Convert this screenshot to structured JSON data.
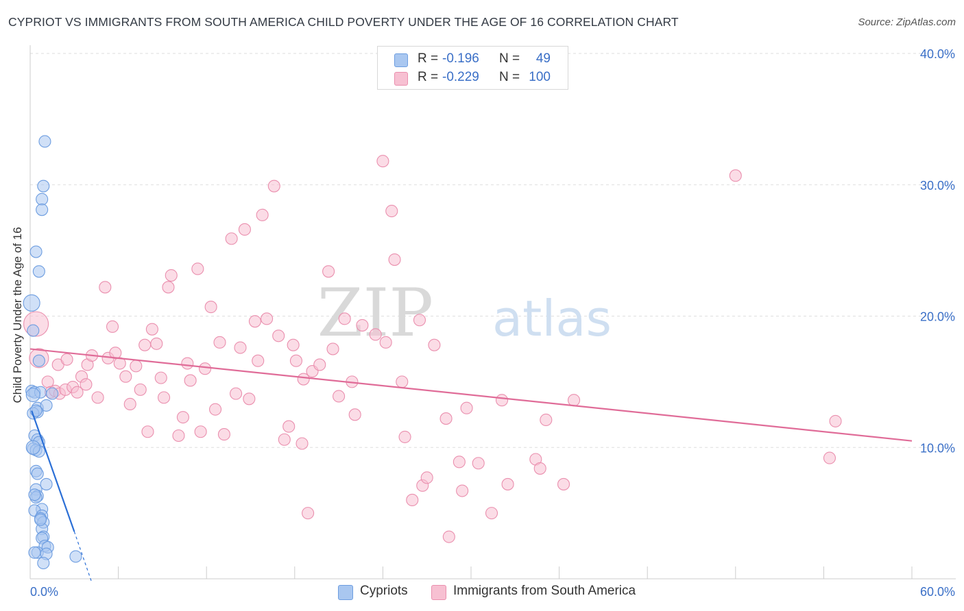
{
  "header": {
    "title": "CYPRIOT VS IMMIGRANTS FROM SOUTH AMERICA CHILD POVERTY UNDER THE AGE OF 16 CORRELATION CHART",
    "source": "Source: ZipAtlas.com"
  },
  "watermark": {
    "part1": "ZIP",
    "part2": "atlas"
  },
  "legend": {
    "rows": [
      {
        "r_label": "R =",
        "r_value": "-0.196",
        "n_label": "N =",
        "n_value": "49",
        "color": "#a9c7f0",
        "border": "#6d9de0"
      },
      {
        "r_label": "R =",
        "r_value": "-0.229",
        "n_label": "N =",
        "n_value": "100",
        "color": "#f7c0d2",
        "border": "#ea8fae"
      }
    ]
  },
  "bottom_legend": [
    {
      "label": "Cypriots",
      "color": "#a9c7f0",
      "border": "#6d9de0"
    },
    {
      "label": "Immigrants from South America",
      "color": "#f7c0d2",
      "border": "#ea8fae"
    }
  ],
  "chart_data": {
    "type": "scatter",
    "title": "CYPRIOT VS IMMIGRANTS FROM SOUTH AMERICA CHILD POVERTY UNDER THE AGE OF 16 CORRELATION CHART",
    "xlabel": "",
    "ylabel": "Child Poverty Under the Age of 16",
    "xlim": [
      0,
      60
    ],
    "ylim": [
      0,
      40
    ],
    "x_tick_labels": [
      "0.0%",
      "60.0%"
    ],
    "y_ticks": [
      10,
      20,
      30,
      40
    ],
    "y_tick_labels": [
      "10.0%",
      "20.0%",
      "30.0%",
      "40.0%"
    ],
    "grid": true,
    "series": [
      {
        "name": "Cypriots",
        "color": "#a9c7f0",
        "stroke": "#6d9de0",
        "line_color": "#2b6fd6",
        "trend": {
          "x0": 0.1,
          "y0": 12.8,
          "x1": 3.0,
          "y1": 3.6,
          "dash_to_x": 4.2,
          "dash_to_y": -0.3
        },
        "points": [
          [
            1.0,
            33.3
          ],
          [
            0.9,
            29.9
          ],
          [
            0.8,
            28.9
          ],
          [
            0.8,
            28.1
          ],
          [
            0.4,
            24.9
          ],
          [
            0.6,
            23.4
          ],
          [
            0.1,
            21.0
          ],
          [
            0.2,
            18.9
          ],
          [
            0.6,
            16.6
          ],
          [
            0.1,
            14.3
          ],
          [
            0.3,
            14.2
          ],
          [
            0.7,
            14.2
          ],
          [
            1.5,
            14.1
          ],
          [
            0.5,
            13.0
          ],
          [
            1.1,
            13.2
          ],
          [
            0.5,
            12.7
          ],
          [
            0.2,
            12.6
          ],
          [
            0.3,
            10.9
          ],
          [
            0.5,
            10.6
          ],
          [
            0.6,
            10.4
          ],
          [
            0.2,
            9.9
          ],
          [
            0.4,
            9.8
          ],
          [
            0.6,
            9.7
          ],
          [
            0.4,
            8.2
          ],
          [
            0.5,
            8.0
          ],
          [
            1.1,
            7.2
          ],
          [
            0.4,
            6.8
          ],
          [
            0.5,
            6.3
          ],
          [
            0.4,
            6.2
          ],
          [
            0.8,
            5.3
          ],
          [
            0.3,
            5.2
          ],
          [
            0.8,
            4.8
          ],
          [
            0.7,
            4.6
          ],
          [
            0.9,
            4.3
          ],
          [
            0.8,
            3.8
          ],
          [
            0.9,
            3.2
          ],
          [
            0.8,
            3.1
          ],
          [
            1.0,
            2.5
          ],
          [
            1.2,
            2.4
          ],
          [
            0.5,
            2.0
          ],
          [
            1.1,
            1.9
          ],
          [
            0.9,
            1.2
          ],
          [
            3.1,
            1.7
          ],
          [
            0.2,
            14.0
          ],
          [
            0.4,
            12.8
          ],
          [
            0.2,
            10.0
          ],
          [
            0.3,
            6.4
          ],
          [
            0.7,
            4.5
          ],
          [
            0.3,
            2.0
          ]
        ]
      },
      {
        "name": "Immigrants from South America",
        "color": "#f7c0d2",
        "stroke": "#ea8fae",
        "line_color": "#e06c98",
        "trend": {
          "x0": 0.0,
          "y0": 17.5,
          "x1": 60.0,
          "y1": 10.5
        },
        "points": [
          [
            0.4,
            19.4
          ],
          [
            0.6,
            16.8
          ],
          [
            1.2,
            15.0
          ],
          [
            1.4,
            14.2
          ],
          [
            1.7,
            14.3
          ],
          [
            1.9,
            16.3
          ],
          [
            2.0,
            14.1
          ],
          [
            2.4,
            14.4
          ],
          [
            2.5,
            16.7
          ],
          [
            2.9,
            14.6
          ],
          [
            3.2,
            14.2
          ],
          [
            3.5,
            15.4
          ],
          [
            3.8,
            14.8
          ],
          [
            3.9,
            16.3
          ],
          [
            4.2,
            17.0
          ],
          [
            4.6,
            13.8
          ],
          [
            5.1,
            22.2
          ],
          [
            5.3,
            16.8
          ],
          [
            5.6,
            19.2
          ],
          [
            5.8,
            17.2
          ],
          [
            6.1,
            16.4
          ],
          [
            6.5,
            15.4
          ],
          [
            6.8,
            13.3
          ],
          [
            7.2,
            16.2
          ],
          [
            7.5,
            14.4
          ],
          [
            7.8,
            17.8
          ],
          [
            8.0,
            11.2
          ],
          [
            8.3,
            19.0
          ],
          [
            8.6,
            17.9
          ],
          [
            8.9,
            15.3
          ],
          [
            9.1,
            13.8
          ],
          [
            9.4,
            22.2
          ],
          [
            9.6,
            23.1
          ],
          [
            10.1,
            10.9
          ],
          [
            10.4,
            12.3
          ],
          [
            10.7,
            16.4
          ],
          [
            10.9,
            15.1
          ],
          [
            11.4,
            23.6
          ],
          [
            11.6,
            11.2
          ],
          [
            11.9,
            16.0
          ],
          [
            12.3,
            20.7
          ],
          [
            12.6,
            12.9
          ],
          [
            12.9,
            18.0
          ],
          [
            13.2,
            11.0
          ],
          [
            13.7,
            25.9
          ],
          [
            14.0,
            14.1
          ],
          [
            14.3,
            17.6
          ],
          [
            14.6,
            26.6
          ],
          [
            14.9,
            13.7
          ],
          [
            15.3,
            19.6
          ],
          [
            15.5,
            16.6
          ],
          [
            15.8,
            27.7
          ],
          [
            16.1,
            19.8
          ],
          [
            16.6,
            29.9
          ],
          [
            16.9,
            18.5
          ],
          [
            17.3,
            10.6
          ],
          [
            17.6,
            11.6
          ],
          [
            17.9,
            17.8
          ],
          [
            18.1,
            16.6
          ],
          [
            18.5,
            10.3
          ],
          [
            18.6,
            15.2
          ],
          [
            18.9,
            5.0
          ],
          [
            19.2,
            15.8
          ],
          [
            19.7,
            16.3
          ],
          [
            20.3,
            23.4
          ],
          [
            20.6,
            17.5
          ],
          [
            21.0,
            13.9
          ],
          [
            21.4,
            19.8
          ],
          [
            21.9,
            15.0
          ],
          [
            22.1,
            12.5
          ],
          [
            22.6,
            19.3
          ],
          [
            23.5,
            18.6
          ],
          [
            24.0,
            31.8
          ],
          [
            24.2,
            18.0
          ],
          [
            24.6,
            28.0
          ],
          [
            24.8,
            24.3
          ],
          [
            25.3,
            15.0
          ],
          [
            25.5,
            10.8
          ],
          [
            26.0,
            6.0
          ],
          [
            26.5,
            19.7
          ],
          [
            26.7,
            7.1
          ],
          [
            27.0,
            7.7
          ],
          [
            27.5,
            17.8
          ],
          [
            28.3,
            12.2
          ],
          [
            28.5,
            3.2
          ],
          [
            29.2,
            8.9
          ],
          [
            29.4,
            6.7
          ],
          [
            29.7,
            13.0
          ],
          [
            30.5,
            8.8
          ],
          [
            31.4,
            5.0
          ],
          [
            32.1,
            13.6
          ],
          [
            32.5,
            7.2
          ],
          [
            34.4,
            9.1
          ],
          [
            34.7,
            8.4
          ],
          [
            35.1,
            12.1
          ],
          [
            36.3,
            7.2
          ],
          [
            37.0,
            13.6
          ],
          [
            48.0,
            30.7
          ],
          [
            54.8,
            12.0
          ],
          [
            54.4,
            9.2
          ]
        ]
      }
    ]
  }
}
